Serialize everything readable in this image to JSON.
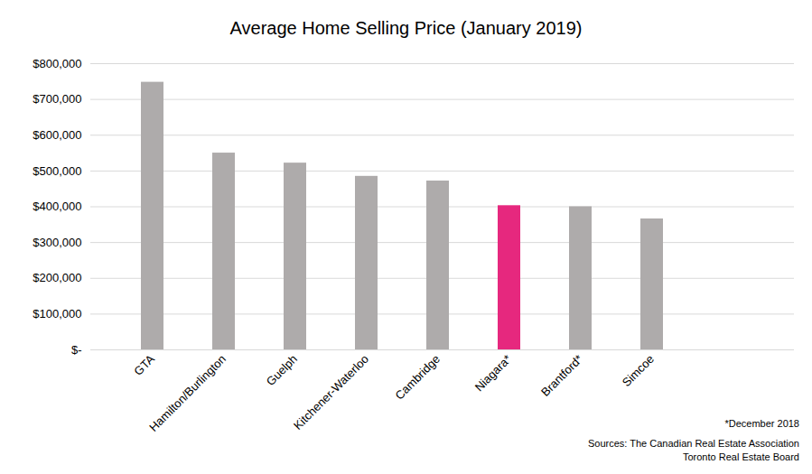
{
  "chart_data": {
    "type": "bar",
    "title": "Average Home Selling Price (January 2019)",
    "categories": [
      "GTA",
      "Hamilton/Burlington",
      "Guelph",
      "Kitchener-Waterloo",
      "Cambridge",
      "Niagara*",
      "Brantford*",
      "Simcoe"
    ],
    "values": [
      748000,
      550000,
      522000,
      485000,
      472000,
      403000,
      400000,
      366000
    ],
    "colors": [
      "#aeabab",
      "#aeabab",
      "#aeabab",
      "#aeabab",
      "#aeabab",
      "#e6287e",
      "#aeabab",
      "#aeabab"
    ],
    "ylim": [
      0,
      800000
    ],
    "yticks": [
      {
        "value": 0,
        "label": "$-"
      },
      {
        "value": 100000,
        "label": "$100,000"
      },
      {
        "value": 200000,
        "label": "$200,000"
      },
      {
        "value": 300000,
        "label": "$300,000"
      },
      {
        "value": 400000,
        "label": "$400,000"
      },
      {
        "value": 500000,
        "label": "$500,000"
      },
      {
        "value": 600000,
        "label": "$600,000"
      },
      {
        "value": 700000,
        "label": "$700,000"
      },
      {
        "value": 800000,
        "label": "$800,000"
      }
    ],
    "grid": true,
    "annotations": [
      "*December 2018",
      "Sources: The Canadian Real Estate Association",
      "Toronto Real Estate Board"
    ]
  }
}
